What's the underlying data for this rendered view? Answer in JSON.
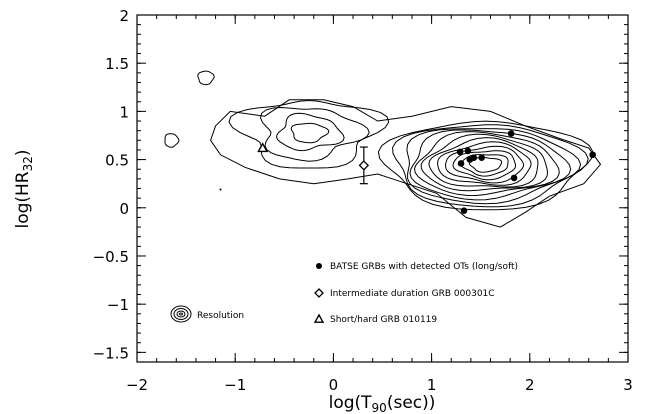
{
  "chart_data": {
    "type": "scatter",
    "title": "",
    "xlabel": "log(T90(sec))",
    "ylabel": "log(HR32)",
    "xlim": [
      -2,
      3
    ],
    "ylim": [
      -1.6,
      2
    ],
    "xticks": [
      -2,
      -1,
      0,
      1,
      2,
      3
    ],
    "xtick_labels": [
      "−2",
      "−1",
      "0",
      "1",
      "2",
      "3"
    ],
    "yticks": [
      -1.5,
      -1,
      -0.5,
      0,
      0.5,
      1,
      1.5,
      2
    ],
    "ytick_labels": [
      "−1.5",
      "−1",
      "−0.5",
      "0",
      "0.5",
      "1",
      "1.5",
      "2"
    ],
    "grid": false,
    "legend_position": "bottom-right",
    "series": [
      {
        "name": "BATSE GRBs with detected OTs (long/soft)",
        "marker": "filled-circle",
        "x": [
          1.29,
          1.37,
          1.43,
          1.51,
          1.3,
          1.39,
          1.81,
          1.84,
          2.64,
          1.33
        ],
        "y": [
          0.58,
          0.59,
          0.52,
          0.52,
          0.46,
          0.5,
          0.77,
          0.31,
          0.55,
          -0.03
        ]
      },
      {
        "name": "Intermediate duration GRB 000301C",
        "marker": "open-diamond",
        "x": [
          0.31
        ],
        "y": [
          0.44
        ],
        "yerr": [
          0.19
        ]
      },
      {
        "name": "Short/hard GRB 010119",
        "marker": "open-triangle",
        "x": [
          -0.72
        ],
        "y": [
          0.62
        ]
      }
    ],
    "contours": {
      "description": "density contours",
      "peak_primary": [
        1.55,
        0.42
      ],
      "peak_secondary": [
        -0.25,
        0.8
      ]
    },
    "annotations": [
      {
        "text": "Resolution",
        "x": -1.55,
        "y": -1.0
      }
    ]
  }
}
